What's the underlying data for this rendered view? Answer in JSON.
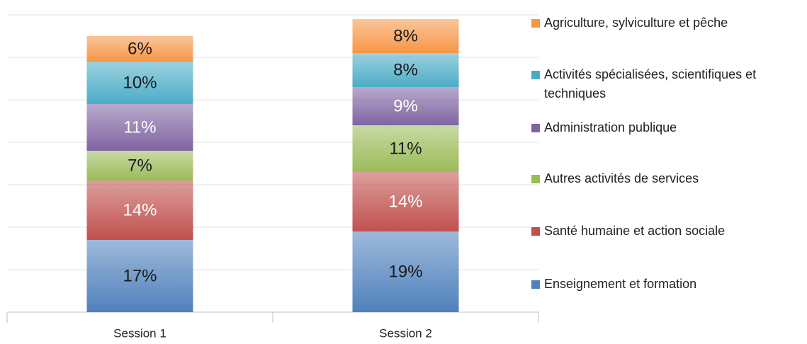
{
  "chart_data": {
    "type": "stacked_bar",
    "categories": [
      "Session 1",
      "Session 2"
    ],
    "series": [
      {
        "name": "Enseignement et formation",
        "color": "#4f81bd",
        "label_color": "#1a1a1a",
        "values": [
          17,
          19
        ],
        "value_labels": [
          "17%",
          "19%"
        ]
      },
      {
        "name": "Santé humaine et action sociale",
        "color": "#c0504d",
        "label_color": "#ffffff",
        "values": [
          14,
          14
        ],
        "value_labels": [
          "14%",
          "14%"
        ]
      },
      {
        "name": "Autres activités de services",
        "color": "#9bbb59",
        "label_color": "#1a1a1a",
        "values": [
          7,
          11
        ],
        "value_labels": [
          "7%",
          "11%"
        ]
      },
      {
        "name": "Administration publique",
        "color": "#8064a2",
        "label_color": "#ffffff",
        "values": [
          11,
          9
        ],
        "value_labels": [
          "11%",
          "9%"
        ]
      },
      {
        "name": "Activités spécialisées, scientifiques et techniques",
        "color": "#4bacc6",
        "label_color": "#1a1a1a",
        "values": [
          10,
          8
        ],
        "value_labels": [
          "10%",
          "8%"
        ]
      },
      {
        "name": "Agriculture, sylviculture et pêche",
        "color": "#f79646",
        "label_color": "#1a1a1a",
        "values": [
          6,
          8
        ],
        "value_labels": [
          "6%",
          "8%"
        ]
      }
    ],
    "ylim": [
      0,
      70
    ],
    "yticks": [
      0,
      10,
      20,
      30,
      40,
      50,
      60,
      70
    ],
    "grid": true,
    "legend": "right"
  }
}
